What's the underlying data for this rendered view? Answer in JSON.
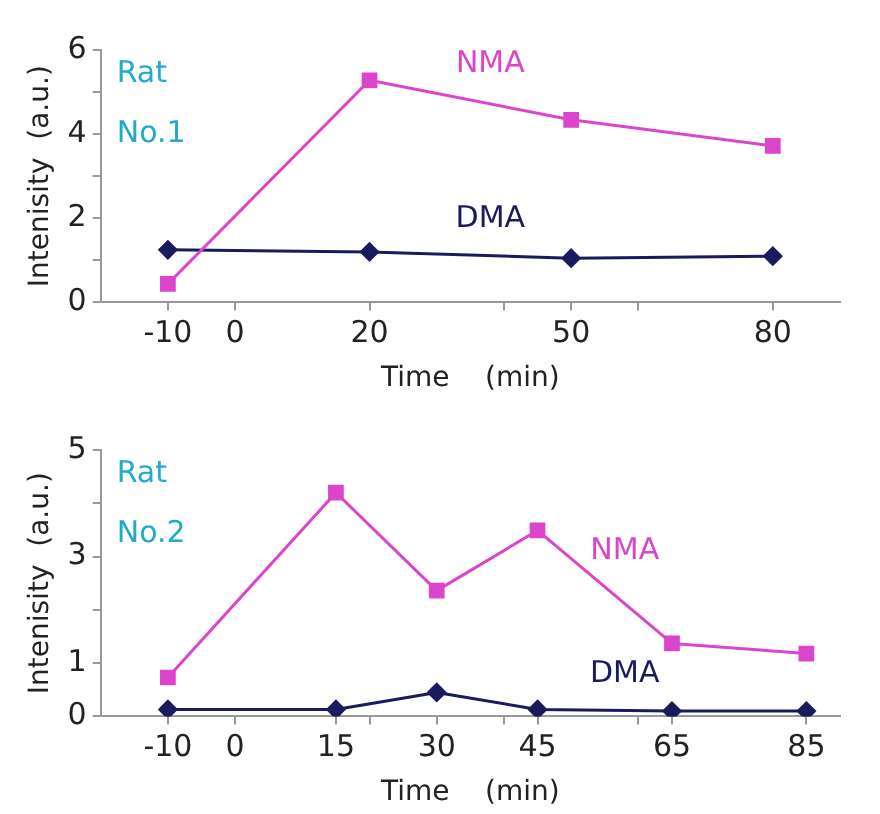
{
  "chart_data": [
    {
      "type": "line",
      "xlabel": "Time    (min)",
      "ylabel": "Intenisity  (a.u.)",
      "annotations": [
        "Rat No.1"
      ],
      "x": [
        -10,
        20,
        50,
        80
      ],
      "xlim": [
        -20,
        90
      ],
      "xticks": [
        -10,
        0,
        20,
        {
          "value": 40,
          "label": null
        },
        50,
        {
          "value": 60,
          "label": null
        },
        80
      ],
      "ylim": [
        0,
        6
      ],
      "yticks": [
        0,
        {
          "value": 1,
          "label": null
        },
        2,
        {
          "value": 3,
          "label": null
        },
        4,
        {
          "value": 5,
          "label": null
        },
        6
      ],
      "grid": false,
      "legend": false,
      "series": [
        {
          "name": "NMA",
          "color": "#dd44cc",
          "marker": "square",
          "values": [
            0.44,
            5.28,
            4.34,
            3.72
          ]
        },
        {
          "name": "DMA",
          "color": "#1a1a5e",
          "marker": "diamond",
          "values": [
            1.25,
            1.2,
            1.05,
            1.1
          ]
        }
      ]
    },
    {
      "type": "line",
      "xlabel": "Time    (min)",
      "ylabel": "Intenisity  (a.u.)",
      "annotations": [
        "Rat No.2"
      ],
      "x": [
        -10,
        15,
        30,
        45,
        65,
        85
      ],
      "xlim": [
        -20,
        90
      ],
      "xticks": [
        -10,
        0,
        15,
        {
          "value": 20,
          "label": null
        },
        30,
        {
          "value": 40,
          "label": null
        },
        45,
        {
          "value": 60,
          "label": null
        },
        65,
        85
      ],
      "ylim": [
        0,
        5
      ],
      "yticks": [
        0,
        1,
        {
          "value": 2,
          "label": null
        },
        3,
        {
          "value": 4,
          "label": null
        },
        5
      ],
      "grid": false,
      "legend": false,
      "series": [
        {
          "name": "NMA",
          "color": "#dd44cc",
          "marker": "square",
          "values": [
            0.73,
            4.2,
            2.36,
            3.49,
            1.37,
            1.18
          ]
        },
        {
          "name": "DMA",
          "color": "#1a1a5e",
          "marker": "diamond",
          "values": [
            0.13,
            0.13,
            0.45,
            0.13,
            0.1,
            0.1
          ]
        }
      ]
    }
  ]
}
